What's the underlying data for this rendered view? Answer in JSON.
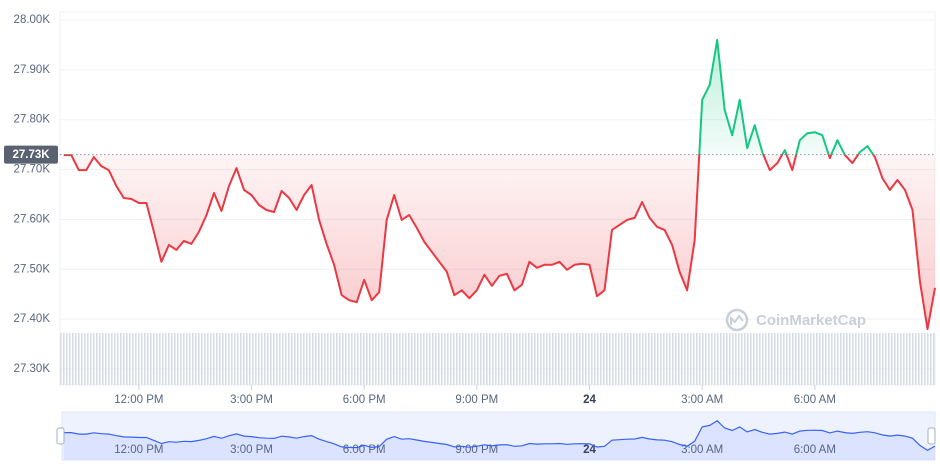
{
  "chart_data": {
    "type": "line",
    "watermark": "CoinMarketCap",
    "reference": {
      "value": 27.73,
      "label": "27.73K"
    },
    "up_color": "#16c784",
    "down_color": "#ea3943",
    "navigator_color": "#3861fb",
    "grid": true,
    "xlim": [
      9.9,
      33.2
    ],
    "ylim": [
      27.268,
      28.016
    ],
    "yticks": [
      {
        "value": 27.3,
        "label": "27.30K"
      },
      {
        "value": 27.4,
        "label": "27.40K"
      },
      {
        "value": 27.5,
        "label": "27.50K"
      },
      {
        "value": 27.6,
        "label": "27.60K"
      },
      {
        "value": 27.7,
        "label": "27.70K"
      },
      {
        "value": 27.8,
        "label": "27.80K"
      },
      {
        "value": 27.9,
        "label": "27.90K"
      },
      {
        "value": 28.0,
        "label": "28.00K"
      }
    ],
    "xticks": [
      {
        "value": 12,
        "label": "12:00 PM"
      },
      {
        "value": 15,
        "label": "3:00 PM"
      },
      {
        "value": 18,
        "label": "6:00 PM"
      },
      {
        "value": 21,
        "label": "9:00 PM"
      },
      {
        "value": 24,
        "label": "24"
      },
      {
        "value": 27,
        "label": "3:00 AM"
      },
      {
        "value": 30,
        "label": "6:00 AM"
      }
    ],
    "x": [
      10.0,
      10.2,
      10.4,
      10.6,
      10.8,
      11.0,
      11.2,
      11.4,
      11.6,
      11.8,
      12.0,
      12.2,
      12.4,
      12.6,
      12.8,
      13.0,
      13.2,
      13.4,
      13.6,
      13.8,
      14.0,
      14.2,
      14.4,
      14.6,
      14.8,
      15.0,
      15.2,
      15.4,
      15.6,
      15.8,
      16.0,
      16.2,
      16.4,
      16.6,
      16.8,
      17.0,
      17.2,
      17.4,
      17.6,
      17.8,
      18.0,
      18.2,
      18.4,
      18.6,
      18.8,
      19.0,
      19.2,
      19.4,
      19.6,
      19.8,
      20.0,
      20.2,
      20.4,
      20.6,
      20.8,
      21.0,
      21.2,
      21.4,
      21.6,
      21.8,
      22.0,
      22.2,
      22.4,
      22.6,
      22.8,
      23.0,
      23.2,
      23.4,
      23.6,
      23.8,
      24.0,
      24.2,
      24.4,
      24.6,
      24.8,
      25.0,
      25.2,
      25.4,
      25.6,
      25.8,
      26.0,
      26.2,
      26.4,
      26.6,
      26.8,
      27.0,
      27.2,
      27.4,
      27.6,
      27.8,
      28.0,
      28.2,
      28.4,
      28.6,
      28.8,
      29.0,
      29.2,
      29.4,
      29.6,
      29.8,
      30.0,
      30.2,
      30.4,
      30.6,
      30.8,
      31.0,
      31.2,
      31.4,
      31.6,
      31.8,
      32.0,
      32.2,
      32.4,
      32.6,
      32.8,
      33.0,
      33.2
    ],
    "values": [
      27.729,
      27.729,
      27.699,
      27.699,
      27.725,
      27.707,
      27.699,
      27.667,
      27.643,
      27.641,
      27.633,
      27.633,
      27.575,
      27.515,
      27.549,
      27.539,
      27.557,
      27.551,
      27.575,
      27.609,
      27.653,
      27.617,
      27.667,
      27.703,
      27.659,
      27.649,
      27.629,
      27.619,
      27.615,
      27.657,
      27.643,
      27.619,
      27.649,
      27.669,
      27.599,
      27.551,
      27.509,
      27.448,
      27.438,
      27.434,
      27.479,
      27.438,
      27.454,
      27.599,
      27.649,
      27.599,
      27.609,
      27.583,
      27.555,
      27.535,
      27.515,
      27.495,
      27.448,
      27.458,
      27.442,
      27.458,
      27.489,
      27.467,
      27.487,
      27.491,
      27.458,
      27.469,
      27.515,
      27.503,
      27.509,
      27.509,
      27.515,
      27.499,
      27.509,
      27.511,
      27.509,
      27.446,
      27.458,
      27.579,
      27.589,
      27.599,
      27.603,
      27.635,
      27.603,
      27.585,
      27.579,
      27.549,
      27.495,
      27.458,
      27.559,
      27.84,
      27.87,
      27.96,
      27.819,
      27.769,
      27.84,
      27.743,
      27.789,
      27.735,
      27.699,
      27.713,
      27.739,
      27.699,
      27.759,
      27.773,
      27.775,
      27.769,
      27.723,
      27.759,
      27.729,
      27.713,
      27.735,
      27.747,
      27.725,
      27.683,
      27.659,
      27.679,
      27.659,
      27.619,
      27.475,
      27.38,
      27.463
    ]
  }
}
